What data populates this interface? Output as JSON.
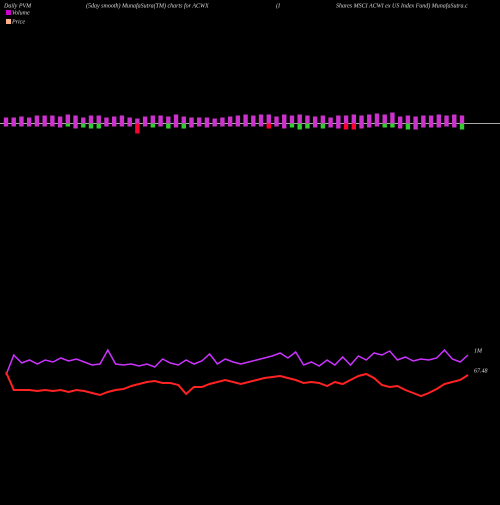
{
  "chart_data": {
    "type": "line",
    "header": [
      "Daily PVM",
      "(5day smooth) MunafaSutra(TM) charts for ACWX",
      "(I",
      "Shares MSCI ACWI ex US Index Fund) MunafaSutra.c"
    ],
    "series": [
      {
        "name": "Volume",
        "color": "#cc33ff",
        "legend_color": "#cc00cc",
        "values": [
          25,
          45,
          37,
          40,
          36,
          40,
          38,
          42,
          39,
          41,
          38,
          35,
          36,
          50,
          36,
          35,
          36,
          34,
          36,
          33,
          41,
          37,
          35,
          40,
          36,
          39,
          46,
          36,
          41,
          38,
          36,
          38,
          40,
          42,
          44,
          47,
          42,
          48,
          35,
          38,
          34,
          40,
          35,
          43,
          35,
          44,
          40,
          47,
          45,
          49,
          40,
          43,
          39,
          41,
          40,
          42,
          50,
          41,
          38,
          45
        ],
        "end_label": "1M"
      },
      {
        "name": "Price",
        "color": "#ff2222",
        "legend_color": "#ffb08a",
        "values": [
          28,
          10,
          10,
          10,
          9,
          10,
          9,
          10,
          8,
          10,
          9,
          7,
          5,
          8,
          10,
          11,
          14,
          16,
          18,
          19,
          17,
          17,
          15,
          6,
          13,
          13,
          16,
          18,
          20,
          18,
          16,
          18,
          20,
          22,
          23,
          24,
          22,
          20,
          17,
          18,
          17,
          14,
          18,
          16,
          20,
          24,
          26,
          22,
          15,
          13,
          14,
          10,
          7,
          4,
          7,
          11,
          16,
          18,
          20,
          25
        ],
        "end_label": "67.48"
      }
    ],
    "ylim": [
      0,
      60
    ],
    "bars": {
      "above": [
        6,
        6,
        7,
        6,
        8,
        8,
        8,
        7,
        9,
        8,
        6,
        8,
        8,
        6,
        7,
        8,
        6,
        5,
        7,
        8,
        8,
        7,
        9,
        7,
        6,
        6,
        6,
        5,
        6,
        7,
        8,
        9,
        8,
        9,
        9,
        7,
        9,
        8,
        9,
        8,
        7,
        8,
        6,
        8,
        8,
        9,
        8,
        9,
        10,
        9,
        11,
        7,
        8,
        7,
        8,
        8,
        9,
        8,
        9,
        8
      ],
      "below": [
        3,
        3,
        3,
        3,
        3,
        3,
        3,
        4,
        3,
        5,
        4,
        5,
        5,
        3,
        3,
        3,
        3,
        10,
        3,
        4,
        3,
        5,
        4,
        5,
        4,
        3,
        4,
        3,
        3,
        3,
        3,
        3,
        3,
        3,
        5,
        3,
        5,
        4,
        6,
        5,
        4,
        5,
        4,
        5,
        6,
        6,
        5,
        4,
        3,
        4,
        4,
        5,
        6,
        6,
        4,
        4,
        4,
        3,
        4,
        6
      ],
      "below_colors": [
        "#cc33cc",
        "#cc33cc",
        "#cc33cc",
        "#cc33cc",
        "#cc33cc",
        "#cc33cc",
        "#cc33cc",
        "#cc33cc",
        "#33cc33",
        "#cc33cc",
        "#33cc33",
        "#33cc33",
        "#33cc33",
        "#cc33cc",
        "#cc33cc",
        "#cc33cc",
        "#cc33cc",
        "#ff0033",
        "#cc33cc",
        "#33cc33",
        "#cc33cc",
        "#33cc33",
        "#cc33cc",
        "#33cc33",
        "#cc33cc",
        "#cc33cc",
        "#cc33cc",
        "#cc33cc",
        "#cc33cc",
        "#cc33cc",
        "#cc33cc",
        "#cc33cc",
        "#cc33cc",
        "#cc33cc",
        "#ff0033",
        "#cc33cc",
        "#cc33cc",
        "#33cc33",
        "#33cc33",
        "#33cc33",
        "#cc33cc",
        "#33cc33",
        "#cc33cc",
        "#cc33cc",
        "#ff0033",
        "#ff0033",
        "#cc33cc",
        "#cc33cc",
        "#cc33cc",
        "#33cc33",
        "#33cc33",
        "#cc33cc",
        "#33cc33",
        "#cc33cc",
        "#cc33cc",
        "#cc33cc",
        "#cc33cc",
        "#cc33cc",
        "#cc33cc",
        "#33cc33"
      ]
    }
  }
}
